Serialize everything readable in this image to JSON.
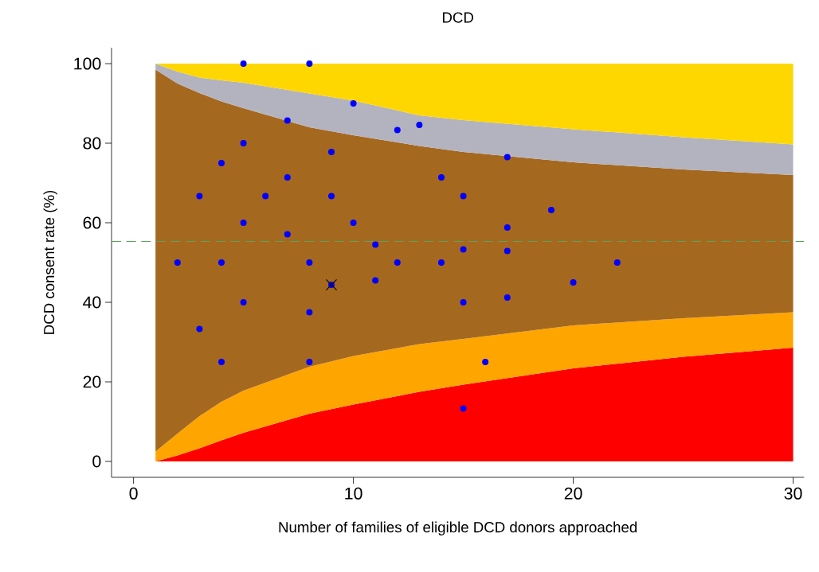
{
  "chart_data": {
    "type": "scatter",
    "title": "DCD",
    "xlabel": "Number of families of eligible DCD donors approached",
    "ylabel": "DCD consent rate (%)",
    "xlim": [
      -1,
      30.5
    ],
    "ylim": [
      -4,
      104
    ],
    "xticks": [
      0,
      10,
      20,
      30
    ],
    "yticks": [
      0,
      20,
      40,
      60,
      80,
      100
    ],
    "grid": false,
    "stacked": true,
    "series": [
      {
        "type": "area",
        "color": "#ff0000",
        "x": [
          1,
          2,
          3,
          4,
          5,
          8,
          10,
          13,
          15,
          20,
          25,
          30
        ],
        "values": [
          0,
          1.5,
          3.3,
          5.3,
          7.2,
          12,
          14.3,
          17.5,
          19.3,
          23.4,
          26.3,
          28.6
        ]
      },
      {
        "type": "area",
        "color": "#ffa500",
        "x": [
          1,
          2,
          3,
          4,
          5,
          8,
          10,
          13,
          15,
          20,
          25,
          30
        ],
        "values": [
          2.5,
          5.5,
          8.1,
          9.7,
          10.6,
          11.8,
          12.2,
          12,
          11.5,
          10.8,
          9.7,
          8.9
        ]
      },
      {
        "type": "area",
        "color": "#a5681f",
        "x": [
          1,
          2,
          3,
          4,
          5,
          8,
          10,
          13,
          15,
          20,
          25,
          30
        ],
        "values": [
          96,
          88,
          81.2,
          75.5,
          71,
          60.2,
          55.5,
          49.8,
          47,
          41,
          37.4,
          34.5
        ]
      },
      {
        "type": "area",
        "color": "#b3b3c0",
        "x": [
          1,
          2,
          3,
          4,
          5,
          8,
          10,
          13,
          15,
          20,
          25,
          30
        ],
        "values": [
          1.5,
          3,
          3.9,
          5.3,
          6.4,
          8.5,
          8.7,
          7.7,
          8,
          8.3,
          8.1,
          7.7
        ]
      },
      {
        "type": "area",
        "color": "#ffd700",
        "x": [
          1,
          2,
          3,
          4,
          5,
          8,
          10,
          13,
          15,
          20,
          25,
          30
        ],
        "values": [
          0,
          2,
          3.5,
          4.2,
          4.8,
          7.5,
          9.3,
          13,
          14.2,
          16.5,
          18.5,
          20.3
        ]
      },
      {
        "marker": "circle",
        "color": "#0000ff",
        "x": [
          2,
          3,
          3,
          4,
          4,
          4,
          5,
          5,
          5,
          5,
          6,
          7,
          7,
          7,
          8,
          8,
          8,
          8,
          9,
          9,
          9,
          10,
          10,
          11,
          11,
          12,
          12,
          13,
          14,
          14,
          15,
          15,
          15,
          15,
          16,
          17,
          17,
          17,
          17,
          19,
          20,
          22
        ],
        "values": [
          50,
          66.7,
          33.3,
          75,
          50,
          25,
          100,
          80,
          60,
          40,
          66.7,
          85.7,
          71.4,
          57.1,
          100,
          50,
          37.5,
          25,
          77.8,
          66.7,
          44.4,
          90,
          60,
          54.5,
          45.5,
          83.3,
          50,
          84.6,
          71.4,
          50,
          66.7,
          53.3,
          40,
          13.3,
          25,
          76.5,
          58.8,
          52.9,
          41.2,
          63.2,
          45,
          50
        ]
      },
      {
        "marker": "cross",
        "color": "#000000",
        "x": [
          9
        ],
        "values": [
          44.4
        ]
      }
    ],
    "ref_lines": [
      {
        "axis": "y",
        "value": 55.3,
        "color": "#5aa55a",
        "line_style": "dashed"
      }
    ]
  }
}
